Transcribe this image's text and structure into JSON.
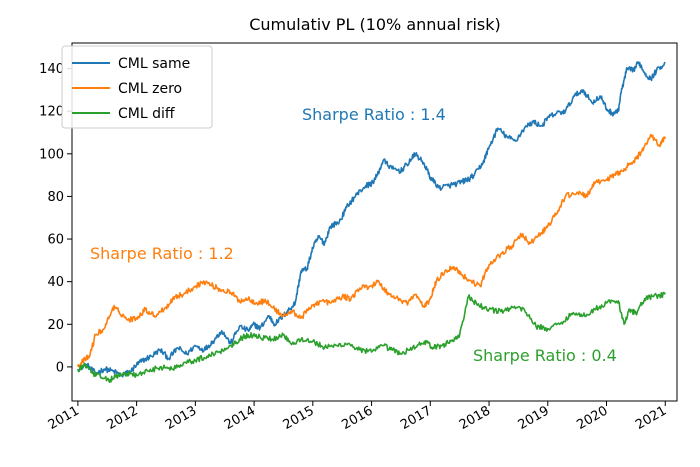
{
  "chart_data": {
    "type": "line",
    "title": "Cumulativ PL (10% annual risk)",
    "xlabel": "",
    "ylabel": "",
    "xlim": [
      2010.9,
      2021.2
    ],
    "ylim": [
      -16,
      152
    ],
    "grid": false,
    "legend_position": "upper-left",
    "x_ticks": [
      2011,
      2012,
      2013,
      2014,
      2015,
      2016,
      2017,
      2018,
      2019,
      2020,
      2021
    ],
    "x_tick_labels": [
      "2011",
      "2012",
      "2013",
      "2014",
      "2015",
      "2016",
      "2017",
      "2018",
      "2019",
      "2020",
      "2021"
    ],
    "y_ticks": [
      0,
      20,
      40,
      60,
      80,
      100,
      120,
      140
    ],
    "y_tick_labels": [
      "0",
      "20",
      "40",
      "60",
      "80",
      "100",
      "120",
      "140"
    ],
    "series": [
      {
        "name": "CML same",
        "color": "#1f77b4",
        "x": [
          2011.0,
          2011.15,
          2011.3,
          2011.45,
          2011.6,
          2011.75,
          2011.9,
          2012.0,
          2012.1,
          2012.25,
          2012.4,
          2012.55,
          2012.7,
          2012.85,
          2013.0,
          2013.15,
          2013.3,
          2013.45,
          2013.6,
          2013.75,
          2013.9,
          2014.0,
          2014.1,
          2014.25,
          2014.35,
          2014.5,
          2014.6,
          2014.7,
          2014.8,
          2014.9,
          2015.0,
          2015.1,
          2015.2,
          2015.3,
          2015.45,
          2015.6,
          2015.75,
          2015.9,
          2016.0,
          2016.1,
          2016.2,
          2016.35,
          2016.5,
          2016.6,
          2016.75,
          2016.9,
          2017.0,
          2017.15,
          2017.3,
          2017.45,
          2017.55,
          2017.65,
          2017.75,
          2017.9,
          2018.0,
          2018.15,
          2018.3,
          2018.45,
          2018.6,
          2018.75,
          2018.9,
          2019.0,
          2019.15,
          2019.3,
          2019.45,
          2019.6,
          2019.75,
          2019.9,
          2020.0,
          2020.1,
          2020.2,
          2020.25,
          2020.35,
          2020.45,
          2020.55,
          2020.65,
          2020.75,
          2020.85,
          2021.0
        ],
        "values": [
          -1,
          1,
          -3,
          -1,
          -2,
          -4,
          -2,
          1,
          3,
          5,
          8,
          4,
          9,
          6,
          10,
          8,
          12,
          17,
          11,
          19,
          17,
          20,
          18,
          24,
          20,
          24,
          27,
          30,
          45,
          46,
          56,
          61,
          58,
          66,
          68,
          76,
          81,
          85,
          86,
          90,
          97,
          93,
          92,
          95,
          100,
          95,
          89,
          84,
          85,
          86,
          87,
          88,
          90,
          96,
          103,
          112,
          108,
          106,
          112,
          115,
          113,
          117,
          119,
          120,
          127,
          130,
          124,
          127,
          121,
          119,
          120,
          129,
          140,
          139,
          143,
          138,
          135,
          139,
          143
        ]
      },
      {
        "name": "CML zero",
        "color": "#ff7f0e",
        "x": [
          2011.0,
          2011.1,
          2011.2,
          2011.3,
          2011.45,
          2011.6,
          2011.7,
          2011.85,
          2012.0,
          2012.15,
          2012.3,
          2012.5,
          2012.65,
          2012.8,
          2013.0,
          2013.15,
          2013.3,
          2013.45,
          2013.6,
          2013.75,
          2013.9,
          2014.05,
          2014.2,
          2014.35,
          2014.5,
          2014.65,
          2014.8,
          2015.0,
          2015.15,
          2015.3,
          2015.5,
          2015.65,
          2015.8,
          2016.0,
          2016.1,
          2016.3,
          2016.45,
          2016.6,
          2016.75,
          2016.9,
          2017.0,
          2017.1,
          2017.25,
          2017.4,
          2017.55,
          2017.7,
          2017.85,
          2018.0,
          2018.2,
          2018.4,
          2018.55,
          2018.7,
          2018.9,
          2019.0,
          2019.15,
          2019.3,
          2019.5,
          2019.65,
          2019.8,
          2020.0,
          2020.15,
          2020.3,
          2020.45,
          2020.6,
          2020.75,
          2020.9,
          2021.0
        ],
        "values": [
          0,
          3,
          5,
          15,
          18,
          28,
          26,
          22,
          23,
          27,
          24,
          28,
          33,
          34,
          38,
          40,
          38,
          36,
          35,
          31,
          32,
          30,
          31,
          27,
          24,
          26,
          23,
          29,
          31,
          30,
          33,
          32,
          37,
          38,
          40,
          34,
          32,
          30,
          34,
          28,
          32,
          40,
          45,
          47,
          43,
          40,
          38,
          48,
          53,
          57,
          62,
          58,
          63,
          66,
          72,
          80,
          82,
          80,
          86,
          88,
          90,
          93,
          96,
          101,
          109,
          104,
          108
        ]
      },
      {
        "name": "CML diff",
        "color": "#2ca02c",
        "x": [
          2011.0,
          2011.1,
          2011.25,
          2011.4,
          2011.55,
          2011.7,
          2011.85,
          2012.0,
          2012.2,
          2012.4,
          2012.6,
          2012.8,
          2013.0,
          2013.2,
          2013.4,
          2013.6,
          2013.75,
          2013.9,
          2014.1,
          2014.3,
          2014.5,
          2014.65,
          2014.8,
          2015.0,
          2015.2,
          2015.4,
          2015.6,
          2015.8,
          2016.0,
          2016.2,
          2016.35,
          2016.5,
          2016.7,
          2016.9,
          2017.05,
          2017.2,
          2017.35,
          2017.5,
          2017.65,
          2017.8,
          2018.0,
          2018.2,
          2018.4,
          2018.6,
          2018.8,
          2019.0,
          2019.2,
          2019.4,
          2019.6,
          2019.8,
          2020.0,
          2020.2,
          2020.3,
          2020.4,
          2020.5,
          2020.65,
          2020.8,
          2021.0
        ],
        "values": [
          -2,
          1,
          -3,
          -5,
          -6,
          -4,
          -3,
          -4,
          -2,
          0,
          -1,
          2,
          3,
          5,
          7,
          10,
          13,
          15,
          14,
          13,
          15,
          11,
          13,
          12,
          9,
          10,
          11,
          8,
          7,
          10,
          8,
          6,
          9,
          12,
          9,
          10,
          12,
          15,
          33,
          29,
          27,
          26,
          28,
          27,
          19,
          18,
          20,
          25,
          24,
          27,
          30,
          31,
          20,
          27,
          25,
          32,
          33,
          34
        ]
      }
    ],
    "legend": [
      "CML same",
      "CML zero",
      "CML diff"
    ],
    "annotations": [
      {
        "text": "Sharpe Ratio : 1.4",
        "color": "#1f77b4"
      },
      {
        "text": "Sharpe Ratio : 1.2",
        "color": "#ff7f0e"
      },
      {
        "text": "Sharpe Ratio : 0.4",
        "color": "#2ca02c"
      }
    ]
  }
}
